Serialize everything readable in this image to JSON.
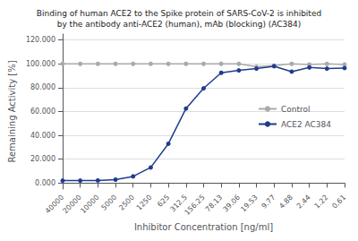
{
  "chart_data": {
    "type": "line",
    "title": "Binding of human ACE2 to the Spike protein of SARS-CoV-2 is inhibited\nby the antibody anti-ACE2 (human), mAb (blocking) (AC384)",
    "x_label": "Inhibitor Concentration [ng/ml]",
    "y_label": "Remaining Activity [%]",
    "categories": [
      "40000",
      "20000",
      "10000",
      "5000",
      "2500",
      "1250",
      "625",
      "312.5",
      "156.25",
      "78.13",
      "39.06",
      "19.53",
      "9.77",
      "4.88",
      "2.44",
      "1.22",
      "0.61"
    ],
    "series": [
      {
        "name": "Control",
        "color": "#aaaaaa",
        "marker": "circle",
        "values": [
          100.0,
          100.0,
          100.0,
          100.0,
          100.0,
          100.0,
          100.0,
          100.0,
          100.0,
          100.0,
          100.0,
          97.5,
          98.5,
          100.0,
          99.5,
          100.0,
          99.5
        ]
      },
      {
        "name": "ACE2 AC384",
        "color": "#1f3d8c",
        "marker": "circle",
        "values": [
          2.1,
          2.1,
          2.2,
          2.9,
          5.6,
          13.1,
          33.0,
          62.5,
          79.5,
          92.5,
          94.5,
          96.0,
          98.0,
          93.5,
          97.0,
          96.0,
          96.5
        ]
      }
    ],
    "ylim": [
      -5,
      125
    ],
    "yticks": [
      {
        "value": 0,
        "label": "0.000"
      },
      {
        "value": 20,
        "label": "20.000"
      },
      {
        "value": 40,
        "label": "40.000"
      },
      {
        "value": 60,
        "label": "60.000"
      },
      {
        "value": 80,
        "label": "80.000"
      },
      {
        "value": 100,
        "label": "100.000"
      },
      {
        "value": 120,
        "label": "120.000"
      }
    ],
    "grid": true,
    "legend": "right"
  }
}
